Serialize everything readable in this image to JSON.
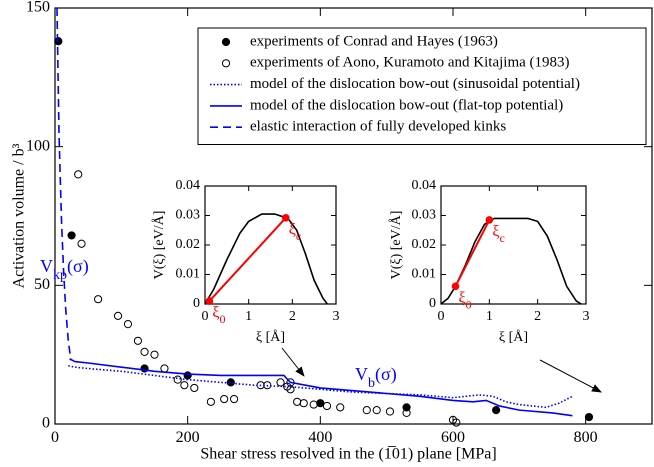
{
  "chart_data": [
    {
      "type": "line",
      "xlabel": "Shear stress resolved in the (1̅01) plane [MPa]",
      "ylabel": "Activation volume / b³",
      "xlim": [
        0,
        900
      ],
      "ylim": [
        0,
        150
      ],
      "xticks": [
        0,
        200,
        400,
        600,
        800
      ],
      "yticks": [
        0,
        50,
        100,
        150
      ],
      "legend": "upper right",
      "series": [
        {
          "name": "experiments of Conrad and Hayes (1963)",
          "style": "filled",
          "color": "#000000",
          "x": [
            5,
            25,
            135,
            200,
            265,
            400,
            530,
            665,
            805
          ],
          "values": [
            138,
            68,
            20,
            17.5,
            15,
            7.5,
            6,
            5,
            2.5
          ]
        },
        {
          "name": "experiments of Aono, Kuramoto and Kitajima (1983)",
          "style": "open",
          "color": "#000000",
          "x": [
            35,
            40,
            65,
            95,
            110,
            125,
            135,
            150,
            165,
            185,
            195,
            210,
            235,
            255,
            270,
            310,
            320,
            340,
            350,
            355,
            355,
            365,
            375,
            390,
            410,
            430,
            470,
            485,
            505,
            530,
            600,
            605
          ],
          "values": [
            90,
            65,
            45,
            39,
            36,
            30,
            26,
            25,
            20,
            16,
            14,
            13,
            8,
            9,
            9,
            14,
            14,
            15,
            13.5,
            15,
            12.5,
            8,
            7.5,
            7,
            6.5,
            6,
            5,
            5,
            4.5,
            4,
            1.5,
            0.5
          ]
        },
        {
          "name": "model of the dislocation bow-out (sinusoidal potential)",
          "style": "dotted",
          "color": "#0000ff",
          "x": [
            20,
            30,
            50,
            100,
            150,
            200,
            250,
            300,
            350,
            400,
            450,
            500,
            550,
            600,
            620,
            640,
            660,
            680,
            700,
            720,
            740,
            760,
            780
          ],
          "values": [
            21,
            20.5,
            20,
            19,
            17.5,
            16,
            15,
            14,
            13.5,
            12.5,
            11.5,
            11,
            10.5,
            9.5,
            10,
            10.5,
            10,
            8,
            7,
            6.5,
            6,
            7.5,
            10
          ]
        },
        {
          "name": "model of the dislocation bow-out (flat-top potential)",
          "style": "solid",
          "color": "#0000ff",
          "x": [
            22,
            30,
            50,
            100,
            150,
            200,
            250,
            300,
            345,
            355,
            400,
            450,
            500,
            550,
            600,
            630,
            650,
            670,
            700,
            750,
            780
          ],
          "values": [
            23.5,
            22.5,
            22,
            20.5,
            19,
            18,
            17.5,
            17.5,
            17.5,
            15,
            13,
            12,
            11,
            10,
            8.5,
            8,
            8.5,
            6.5,
            5,
            4,
            3
          ]
        },
        {
          "name": "elastic interaction of fully developed kinks",
          "style": "dashed",
          "color": "#0000ff",
          "x": [
            3,
            4,
            5,
            6,
            8,
            10,
            13,
            16,
            20,
            24
          ],
          "values": [
            150,
            135,
            120,
            105,
            88,
            72,
            55,
            42,
            30,
            23
          ]
        }
      ],
      "annotations": [
        {
          "text": "V",
          "sub": "kp",
          "rest": "(σ)",
          "color": "#0000ff"
        },
        {
          "text": "V",
          "sub": "b",
          "rest": "(σ)",
          "color": "#0000ff"
        }
      ]
    },
    {
      "type": "line",
      "xlabel": "ξ [Å]",
      "ylabel": "V(ξ) [eV/Å]",
      "xlim": [
        0,
        3
      ],
      "ylim": [
        0,
        0.04
      ],
      "xticks": [
        0,
        1,
        2,
        3
      ],
      "yticks": [
        0,
        0.01,
        0.02,
        0.03,
        0.04
      ],
      "series": [
        {
          "style": "solid",
          "color": "#000000",
          "x": [
            0,
            0.2,
            0.5,
            0.8,
            1.0,
            1.3,
            1.6,
            1.9,
            2.1,
            2.3,
            2.5,
            2.7,
            2.8
          ],
          "values": [
            0,
            0.005,
            0.015,
            0.024,
            0.028,
            0.0305,
            0.0305,
            0.029,
            0.025,
            0.017,
            0.008,
            0.002,
            0
          ]
        },
        {
          "style": "segment",
          "color": "#ff0000",
          "x": [
            0.1,
            1.85
          ],
          "values": [
            0.001,
            0.0292
          ]
        }
      ],
      "annotations": [
        {
          "text": "ξ",
          "sub": "0",
          "color": "#ff0000"
        },
        {
          "text": "ξ",
          "sub": "c",
          "color": "#ff0000"
        }
      ]
    },
    {
      "type": "line",
      "xlabel": "ξ [Å]",
      "ylabel": "V(ξ) [eV/Å]",
      "xlim": [
        0,
        3
      ],
      "ylim": [
        0,
        0.04
      ],
      "xticks": [
        0,
        1,
        2,
        3
      ],
      "yticks": [
        0,
        0.01,
        0.02,
        0.03,
        0.04
      ],
      "series": [
        {
          "style": "solid",
          "color": "#000000",
          "x": [
            0,
            0.15,
            0.3,
            0.5,
            0.7,
            0.9,
            1.1,
            1.5,
            1.8,
            2.0,
            2.2,
            2.4,
            2.6,
            2.8,
            2.9
          ],
          "values": [
            0,
            0.002,
            0.006,
            0.013,
            0.021,
            0.027,
            0.029,
            0.029,
            0.029,
            0.028,
            0.023,
            0.015,
            0.006,
            0.001,
            0
          ]
        },
        {
          "style": "segment",
          "color": "#ff0000",
          "x": [
            0.3,
            1.0
          ],
          "values": [
            0.006,
            0.0285
          ]
        }
      ],
      "annotations": [
        {
          "text": "ξ",
          "sub": "0",
          "color": "#ff0000"
        },
        {
          "text": "ξ",
          "sub": "c",
          "color": "#ff0000"
        }
      ]
    }
  ]
}
